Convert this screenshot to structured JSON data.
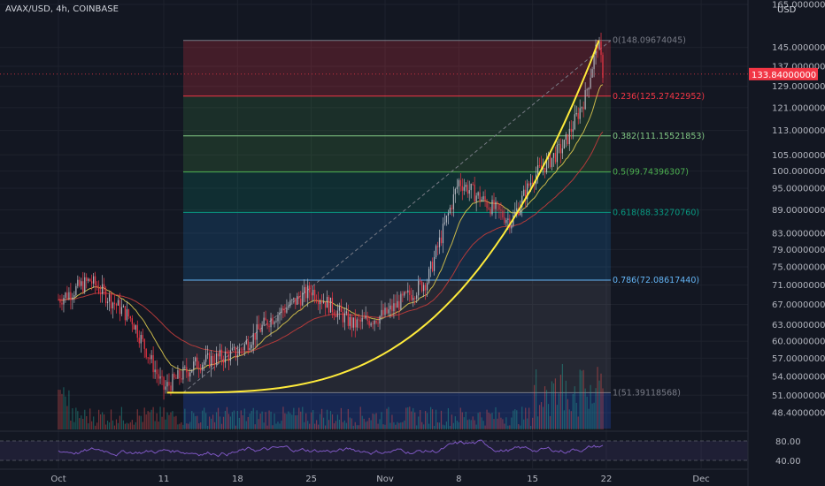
{
  "header": {
    "title": "AVAX/USD, 4h, COINBASE"
  },
  "axis": {
    "currency": "USD",
    "price_ticks": [
      "165.00000000",
      "145.00000000",
      "137.00000000",
      "129.00000000",
      "121.00000000",
      "113.00000000",
      "105.00000000",
      "100.00000000",
      "95.00000000",
      "89.00000000",
      "83.00000000",
      "79.00000000",
      "75.00000000",
      "71.00000000",
      "67.00000000",
      "63.00000000",
      "60.00000000",
      "57.00000000",
      "54.00000000",
      "51.00000000",
      "48.40000000"
    ],
    "current_price": "133.84000000",
    "rsi_ticks": [
      "80.00",
      "40.00"
    ],
    "time_labels": [
      "Oct",
      "11",
      "18",
      "25",
      "Nov",
      "8",
      "15",
      "22",
      "Dec"
    ]
  },
  "fib": [
    {
      "label": "0(148.09674045)",
      "price": 148.09674045,
      "color": "#787b86"
    },
    {
      "label": "0.236(125.27422952)",
      "price": 125.27422952,
      "color": "#f23645"
    },
    {
      "label": "0.382(111.15521853)",
      "price": 111.15521853,
      "color": "#81c784"
    },
    {
      "label": "0.5(99.74396307)",
      "price": 99.74396307,
      "color": "#4caf50"
    },
    {
      "label": "0.618(88.33270760)",
      "price": 88.3327076,
      "color": "#089981"
    },
    {
      "label": "0.786(72.08617440)",
      "price": 72.0861744,
      "color": "#64b5f6"
    },
    {
      "label": "1(51.39118568)",
      "price": 51.39118568,
      "color": "#787b86"
    }
  ],
  "colors": {
    "background": "#131722",
    "up": "#b2b5be",
    "down": "#f23645",
    "curve": "#ffeb3b",
    "rsi": "#7e57c2",
    "ema_fast": "#c9b84a",
    "ema_slow": "#b33a3a"
  },
  "chart_data": {
    "type": "line",
    "title": "AVAX/USD, 4h, COINBASE",
    "x_labels": [
      "Oct",
      "11",
      "18",
      "25",
      "Nov",
      "8",
      "15",
      "22",
      "Dec"
    ],
    "price_path": [
      {
        "x": "Oct",
        "y": 68
      },
      {
        "x": "Oct 3",
        "y": 72
      },
      {
        "x": "Oct 7",
        "y": 64
      },
      {
        "x": "11",
        "y": 52
      },
      {
        "x": "Oct 14",
        "y": 56
      },
      {
        "x": "18",
        "y": 58
      },
      {
        "x": "Oct 21",
        "y": 64
      },
      {
        "x": "25",
        "y": 70
      },
      {
        "x": "Oct 29",
        "y": 63
      },
      {
        "x": "Nov",
        "y": 65
      },
      {
        "x": "Nov 4",
        "y": 72
      },
      {
        "x": "8",
        "y": 97
      },
      {
        "x": "Nov 11",
        "y": 90
      },
      {
        "x": "Nov 13",
        "y": 86
      },
      {
        "x": "15",
        "y": 98
      },
      {
        "x": "Nov 18",
        "y": 108
      },
      {
        "x": "Nov 20",
        "y": 125
      },
      {
        "x": "Nov 21",
        "y": 148
      },
      {
        "x": "22",
        "y": 133.84
      }
    ],
    "ylim": [
      46,
      168
    ],
    "scale": "log",
    "grid": true,
    "rsi_range": [
      40,
      80
    ]
  }
}
